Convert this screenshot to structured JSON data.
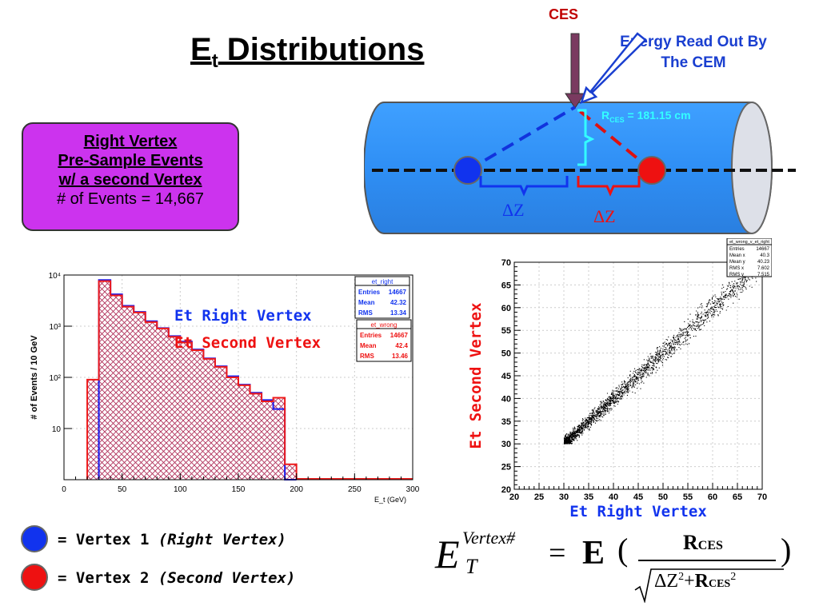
{
  "title": {
    "main": "E",
    "sub": "t",
    "rest": " Distributions"
  },
  "diagram": {
    "ces_label": "CES",
    "cem_label_line1": "Energy Read Out By",
    "cem_label_line2": "The CEM",
    "rces_label": "R",
    "rces_sub": "CES",
    "rces_value": " = 181.15 cm",
    "dz_blue": "ΔZ",
    "dz_red": "ΔZ",
    "colors": {
      "cylinder": "#3399ff",
      "blue": "#0033ee",
      "red": "#ee1111",
      "cyan": "#33ffff"
    }
  },
  "info_box": {
    "line1": "Right Vertex",
    "line2": "Pre-Sample Events",
    "line3": "w/ a second Vertex",
    "line4": "# of Events = 14,667"
  },
  "legend": {
    "v1": "= Vertex 1 ",
    "v1_italic": "(Right Vertex)",
    "v2": "= Vertex 2 ",
    "v2_italic": "(Second Vertex)"
  },
  "equation": {
    "E": "E",
    "T": "T",
    "sup": "Vertex#",
    "equals": "=",
    "bold_E": "E",
    "open": "(",
    "close": ")",
    "num_R": "R",
    "num_sub": "CES",
    "den_dz": "ΔZ",
    "den_sq": "2",
    "den_plus": "+",
    "den_R": "R",
    "den_sub": "CES",
    "den_sq2": "2"
  },
  "hist_labels": {
    "right": "Et Right Vertex",
    "second": "Et Second Vertex"
  },
  "chart_data": [
    {
      "type": "bar",
      "xlabel": "E_t (GeV)",
      "ylabel": "# of Events / 10 GeV",
      "xlim": [
        0,
        300
      ],
      "ylim_log": [
        1,
        10000
      ],
      "log_y": true,
      "x_ticks": [
        "0",
        "50",
        "100",
        "150",
        "200",
        "250",
        "300"
      ],
      "y_ticks": [
        "10",
        "10²",
        "10³",
        "10⁴"
      ],
      "bin_width": 10,
      "series": [
        {
          "name": "et_right",
          "color": "#1a1aee",
          "bins": [
            [
              30,
              8000
            ],
            [
              40,
              4200
            ],
            [
              50,
              2500
            ],
            [
              60,
              1900
            ],
            [
              70,
              1250
            ],
            [
              80,
              920
            ],
            [
              90,
              640
            ],
            [
              100,
              500
            ],
            [
              110,
              350
            ],
            [
              120,
              235
            ],
            [
              130,
              165
            ],
            [
              140,
              105
            ],
            [
              150,
              72
            ],
            [
              160,
              50
            ],
            [
              170,
              36
            ],
            [
              180,
              24
            ],
            [
              190,
              0
            ]
          ]
        },
        {
          "name": "et_wrong",
          "color": "#ee1a1a",
          "bins": [
            [
              20,
              90
            ],
            [
              30,
              7600
            ],
            [
              40,
              4000
            ],
            [
              50,
              2400
            ],
            [
              60,
              1850
            ],
            [
              70,
              1200
            ],
            [
              80,
              900
            ],
            [
              90,
              620
            ],
            [
              100,
              480
            ],
            [
              110,
              340
            ],
            [
              120,
              230
            ],
            [
              130,
              160
            ],
            [
              140,
              100
            ],
            [
              150,
              70
            ],
            [
              160,
              48
            ],
            [
              170,
              34
            ],
            [
              180,
              40
            ],
            [
              190,
              2
            ]
          ]
        }
      ],
      "stats": [
        {
          "title": "et_right",
          "rows": [
            [
              "Entries",
              "14667"
            ],
            [
              "Mean",
              "42.32"
            ],
            [
              "RMS",
              "13.34"
            ]
          ]
        },
        {
          "title": "et_wrong",
          "rows": [
            [
              "Entries",
              "14667"
            ],
            [
              "Mean",
              "42.4"
            ],
            [
              "RMS",
              "13.46"
            ]
          ]
        }
      ]
    },
    {
      "type": "scatter",
      "title": "et_wrong_v_et_right",
      "xlabel": "Et Right Vertex",
      "ylabel": "Et Second Vertex",
      "xlim": [
        20,
        70
      ],
      "ylim": [
        20,
        70
      ],
      "x_ticks": [
        "20",
        "25",
        "30",
        "35",
        "40",
        "45",
        "50",
        "55",
        "60",
        "65",
        "70"
      ],
      "y_ticks": [
        "20",
        "25",
        "30",
        "35",
        "40",
        "45",
        "50",
        "55",
        "60",
        "65",
        "70"
      ],
      "stats": [
        [
          "Entries",
          "14667"
        ],
        [
          "Mean x",
          "40.3"
        ],
        [
          "Mean y",
          "40.23"
        ],
        [
          "RMS x",
          "7.602"
        ],
        [
          "RMS y",
          "7.515"
        ]
      ]
    }
  ]
}
